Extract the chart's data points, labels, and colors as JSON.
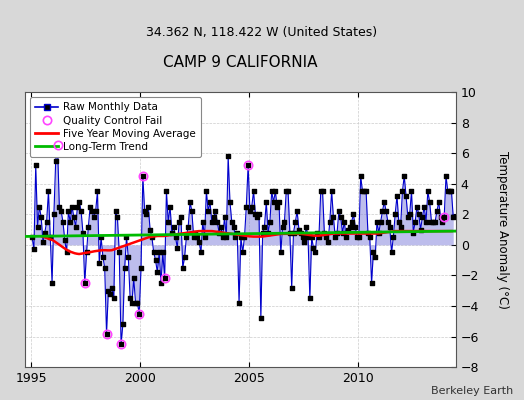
{
  "title": "CAMP 9 CALIFORNIA",
  "subtitle": "34.362 N, 118.422 W (United States)",
  "ylabel": "Temperature Anomaly (°C)",
  "credit": "Berkeley Earth",
  "ylim": [
    -8,
    10
  ],
  "xlim": [
    1994.7,
    2014.5
  ],
  "yticks": [
    -8,
    -6,
    -4,
    -2,
    0,
    2,
    4,
    6,
    8,
    10
  ],
  "xticks": [
    1995,
    2000,
    2005,
    2010
  ],
  "fig_bg_color": "#d8d8d8",
  "plot_bg_color": "#ffffff",
  "raw_line_color": "#0000cc",
  "raw_fill_color": "#8888dd",
  "dot_color": "#000000",
  "qc_color": "#ff44ff",
  "moving_avg_color": "#ff0000",
  "trend_color": "#00bb00",
  "raw_monthly": [
    1995.042,
    0.5,
    1995.125,
    -0.3,
    1995.208,
    5.2,
    1995.292,
    1.2,
    1995.375,
    2.5,
    1995.458,
    1.8,
    1995.542,
    0.2,
    1995.625,
    0.8,
    1995.708,
    1.5,
    1995.792,
    3.5,
    1995.875,
    0.5,
    1995.958,
    -2.5,
    1996.042,
    2.0,
    1996.125,
    5.5,
    1996.208,
    6.5,
    1996.292,
    2.5,
    1996.375,
    2.2,
    1996.458,
    1.5,
    1996.542,
    0.3,
    1996.625,
    -0.5,
    1996.708,
    2.2,
    1996.792,
    1.5,
    1996.875,
    2.5,
    1996.958,
    1.8,
    1997.042,
    1.2,
    1997.125,
    2.5,
    1997.208,
    2.8,
    1997.292,
    2.2,
    1997.375,
    0.8,
    1997.458,
    -2.5,
    1997.542,
    -0.5,
    1997.625,
    1.2,
    1997.708,
    2.5,
    1997.792,
    2.2,
    1997.875,
    1.8,
    1997.958,
    2.2,
    1998.042,
    3.5,
    1998.125,
    -1.2,
    1998.208,
    0.5,
    1998.292,
    -0.8,
    1998.375,
    -1.5,
    1998.458,
    -5.8,
    1998.542,
    -3.0,
    1998.625,
    -3.2,
    1998.708,
    -2.8,
    1998.792,
    -3.5,
    1998.875,
    2.2,
    1998.958,
    1.8,
    1999.042,
    -0.5,
    1999.125,
    -6.5,
    1999.208,
    -5.2,
    1999.292,
    -1.5,
    1999.375,
    0.5,
    1999.458,
    -0.8,
    1999.542,
    -3.5,
    1999.625,
    -3.8,
    1999.708,
    -2.2,
    1999.792,
    -3.8,
    1999.875,
    -3.8,
    1999.958,
    -4.5,
    2000.042,
    -1.5,
    2000.125,
    4.5,
    2000.208,
    2.2,
    2000.292,
    2.0,
    2000.375,
    2.5,
    2000.458,
    1.0,
    2000.542,
    0.5,
    2000.625,
    -0.5,
    2000.708,
    -1.0,
    2000.792,
    -1.8,
    2000.875,
    -0.5,
    2000.958,
    -2.5,
    2001.042,
    -0.5,
    2001.125,
    -2.2,
    2001.208,
    3.5,
    2001.292,
    1.5,
    2001.375,
    2.5,
    2001.458,
    0.8,
    2001.542,
    1.2,
    2001.625,
    0.5,
    2001.708,
    -0.2,
    2001.792,
    1.5,
    2001.875,
    1.8,
    2001.958,
    -1.5,
    2002.042,
    -0.8,
    2002.125,
    0.5,
    2002.208,
    1.2,
    2002.292,
    2.8,
    2002.375,
    2.2,
    2002.458,
    0.5,
    2002.542,
    0.8,
    2002.625,
    0.5,
    2002.708,
    0.2,
    2002.792,
    -0.5,
    2002.875,
    1.5,
    2002.958,
    0.5,
    2003.042,
    3.5,
    2003.125,
    2.2,
    2003.208,
    2.8,
    2003.292,
    1.5,
    2003.375,
    1.8,
    2003.458,
    2.2,
    2003.542,
    1.5,
    2003.625,
    0.8,
    2003.708,
    1.2,
    2003.792,
    0.5,
    2003.875,
    1.8,
    2003.958,
    0.5,
    2004.042,
    5.8,
    2004.125,
    2.8,
    2004.208,
    1.5,
    2004.292,
    1.2,
    2004.375,
    0.5,
    2004.458,
    0.8,
    2004.542,
    -3.8,
    2004.625,
    0.5,
    2004.708,
    -0.5,
    2004.792,
    0.5,
    2004.875,
    2.5,
    2004.958,
    5.2,
    2005.042,
    2.2,
    2005.125,
    2.5,
    2005.208,
    3.5,
    2005.292,
    2.0,
    2005.375,
    1.8,
    2005.458,
    2.0,
    2005.542,
    -4.8,
    2005.625,
    0.8,
    2005.708,
    1.2,
    2005.792,
    2.8,
    2005.875,
    0.8,
    2005.958,
    1.5,
    2006.042,
    3.5,
    2006.125,
    2.8,
    2006.208,
    3.5,
    2006.292,
    2.5,
    2006.375,
    2.8,
    2006.458,
    -0.5,
    2006.542,
    1.2,
    2006.625,
    1.5,
    2006.708,
    3.5,
    2006.792,
    3.5,
    2006.875,
    0.8,
    2006.958,
    -2.8,
    2007.042,
    0.8,
    2007.125,
    1.5,
    2007.208,
    2.2,
    2007.292,
    1.0,
    2007.375,
    0.8,
    2007.458,
    0.5,
    2007.542,
    0.2,
    2007.625,
    1.2,
    2007.708,
    0.5,
    2007.792,
    -3.5,
    2007.875,
    0.5,
    2007.958,
    -0.2,
    2008.042,
    -0.5,
    2008.125,
    0.8,
    2008.208,
    0.5,
    2008.292,
    3.5,
    2008.375,
    3.5,
    2008.458,
    0.8,
    2008.542,
    0.5,
    2008.625,
    0.2,
    2008.708,
    1.5,
    2008.792,
    3.5,
    2008.875,
    1.8,
    2008.958,
    0.5,
    2009.042,
    0.8,
    2009.125,
    2.2,
    2009.208,
    1.8,
    2009.292,
    0.8,
    2009.375,
    1.5,
    2009.458,
    0.5,
    2009.542,
    1.0,
    2009.625,
    1.2,
    2009.708,
    1.5,
    2009.792,
    2.0,
    2009.875,
    1.2,
    2009.958,
    0.5,
    2010.042,
    0.5,
    2010.125,
    4.5,
    2010.208,
    3.5,
    2010.292,
    3.5,
    2010.375,
    3.5,
    2010.458,
    0.8,
    2010.542,
    0.5,
    2010.625,
    -2.5,
    2010.708,
    -0.5,
    2010.792,
    -0.8,
    2010.875,
    1.5,
    2010.958,
    0.8,
    2011.042,
    1.5,
    2011.125,
    2.2,
    2011.208,
    2.8,
    2011.292,
    2.2,
    2011.375,
    1.5,
    2011.458,
    1.2,
    2011.542,
    -0.5,
    2011.625,
    0.5,
    2011.708,
    2.0,
    2011.792,
    3.2,
    2011.875,
    1.5,
    2011.958,
    1.2,
    2012.042,
    3.5,
    2012.125,
    4.5,
    2012.208,
    3.2,
    2012.292,
    1.8,
    2012.375,
    2.0,
    2012.458,
    3.5,
    2012.542,
    0.8,
    2012.625,
    1.5,
    2012.708,
    2.5,
    2012.792,
    2.0,
    2012.875,
    1.0,
    2012.958,
    1.8,
    2013.042,
    2.5,
    2013.125,
    1.5,
    2013.208,
    3.5,
    2013.292,
    2.8,
    2013.375,
    1.5,
    2013.458,
    1.5,
    2013.542,
    1.5,
    2013.625,
    2.2,
    2013.708,
    2.8,
    2013.792,
    1.8,
    2013.875,
    1.5,
    2013.958,
    1.8,
    2014.042,
    4.5,
    2014.125,
    3.5,
    2014.208,
    3.5,
    2014.292,
    3.5,
    2014.375,
    1.8
  ],
  "qc_fail_points": [
    [
      1996.208,
      6.5
    ],
    [
      1997.458,
      -2.5
    ],
    [
      1998.458,
      -5.8
    ],
    [
      1999.125,
      -6.5
    ],
    [
      1999.958,
      -4.5
    ],
    [
      2000.125,
      4.5
    ],
    [
      2001.125,
      -2.2
    ],
    [
      2004.958,
      5.2
    ],
    [
      2013.958,
      1.8
    ]
  ],
  "moving_avg_x": [
    1995.5,
    1995.6,
    1995.7,
    1995.8,
    1995.9,
    1996.0,
    1996.1,
    1996.2,
    1996.3,
    1996.4,
    1996.5,
    1996.6,
    1996.7,
    1996.8,
    1996.9,
    1997.0,
    1997.1,
    1997.2,
    1997.3,
    1997.4,
    1997.5,
    1997.6,
    1997.7,
    1997.8,
    1997.9,
    1998.0,
    1998.1,
    1998.2,
    1998.3,
    1998.4,
    1998.5,
    1998.6,
    1998.7,
    1998.8,
    1998.9,
    1999.0,
    1999.1,
    1999.2,
    1999.3,
    1999.4,
    1999.5,
    1999.6,
    1999.7,
    1999.8,
    1999.9,
    2000.0,
    2000.1,
    2000.2,
    2000.3,
    2000.4,
    2000.5,
    2000.6,
    2000.7,
    2000.8,
    2000.9,
    2001.0,
    2001.1,
    2001.2,
    2001.3,
    2001.4,
    2001.5,
    2001.6,
    2001.7,
    2001.8,
    2001.9,
    2002.0,
    2002.1,
    2002.2,
    2002.3,
    2002.4,
    2002.5,
    2002.6,
    2002.7,
    2002.8,
    2002.9,
    2003.0,
    2003.1,
    2003.2,
    2003.3,
    2003.4,
    2003.5,
    2003.6,
    2003.7,
    2003.8,
    2003.9,
    2004.0,
    2004.1,
    2004.2,
    2004.3,
    2004.4,
    2004.5,
    2004.6,
    2004.7,
    2004.8,
    2004.9,
    2005.0,
    2005.1,
    2005.2,
    2005.3,
    2005.4,
    2005.5,
    2005.6,
    2005.7,
    2005.8,
    2005.9,
    2006.0,
    2006.1,
    2006.2,
    2006.3,
    2006.4,
    2006.5,
    2006.6,
    2006.7,
    2006.8,
    2006.9,
    2007.0,
    2007.1,
    2007.2,
    2007.3,
    2007.4,
    2007.5,
    2007.6,
    2007.7,
    2007.8,
    2007.9,
    2008.0,
    2008.1,
    2008.2,
    2008.3,
    2008.4,
    2008.5,
    2008.6,
    2008.7,
    2008.8,
    2008.9,
    2009.0,
    2009.1,
    2009.2,
    2009.3,
    2009.4,
    2009.5,
    2009.6,
    2009.7,
    2009.8,
    2009.9,
    2010.0,
    2010.1,
    2010.2,
    2010.3,
    2010.4,
    2010.5,
    2010.6,
    2010.7,
    2010.8,
    2010.9,
    2011.0,
    2011.1,
    2011.2,
    2011.3,
    2011.4,
    2011.5,
    2011.6,
    2011.7,
    2011.8,
    2011.9,
    2012.0,
    2012.1,
    2012.2,
    2012.3,
    2012.4,
    2012.5,
    2012.6,
    2012.7,
    2012.8,
    2012.9,
    2013.0,
    2013.1,
    2013.2,
    2013.3,
    2013.4,
    2013.5,
    2013.6,
    2013.7,
    2013.8,
    2013.9,
    2014.0,
    2014.1,
    2014.2,
    2014.3
  ],
  "moving_avg_y": [
    0.55,
    0.5,
    0.45,
    0.4,
    0.35,
    0.3,
    0.2,
    0.1,
    0.0,
    -0.1,
    -0.2,
    -0.3,
    -0.38,
    -0.45,
    -0.5,
    -0.55,
    -0.58,
    -0.6,
    -0.58,
    -0.55,
    -0.52,
    -0.5,
    -0.48,
    -0.45,
    -0.42,
    -0.4,
    -0.38,
    -0.36,
    -0.35,
    -0.35,
    -0.36,
    -0.36,
    -0.35,
    -0.3,
    -0.25,
    -0.2,
    -0.15,
    -0.1,
    -0.05,
    0.0,
    0.05,
    0.1,
    0.15,
    0.2,
    0.25,
    0.3,
    0.35,
    0.4,
    0.45,
    0.5,
    0.52,
    0.54,
    0.56,
    0.58,
    0.58,
    0.58,
    0.58,
    0.6,
    0.62,
    0.64,
    0.66,
    0.68,
    0.7,
    0.72,
    0.74,
    0.76,
    0.78,
    0.8,
    0.82,
    0.84,
    0.86,
    0.88,
    0.9,
    0.9,
    0.9,
    0.9,
    0.9,
    0.9,
    0.9,
    0.88,
    0.86,
    0.84,
    0.82,
    0.8,
    0.78,
    0.76,
    0.74,
    0.72,
    0.7,
    0.68,
    0.66,
    0.64,
    0.62,
    0.6,
    0.58,
    0.56,
    0.55,
    0.54,
    0.54,
    0.54,
    0.54,
    0.54,
    0.56,
    0.58,
    0.6,
    0.62,
    0.64,
    0.66,
    0.68,
    0.7,
    0.72,
    0.72,
    0.72,
    0.72,
    0.72,
    0.72,
    0.72,
    0.72,
    0.72,
    0.72,
    0.7,
    0.68,
    0.66,
    0.64,
    0.62,
    0.6,
    0.6,
    0.6,
    0.62,
    0.64,
    0.66,
    0.68,
    0.7,
    0.72,
    0.74,
    0.74,
    0.74,
    0.74,
    0.74,
    0.74,
    0.74,
    0.74,
    0.74,
    0.74,
    0.74,
    0.74,
    0.74,
    0.74,
    0.74,
    0.74,
    0.74,
    0.74,
    0.74,
    0.74,
    0.74,
    0.76,
    0.78,
    0.8,
    0.82,
    0.84,
    0.86,
    0.88,
    0.9,
    0.9,
    0.9,
    0.9,
    0.9,
    0.9,
    0.9,
    0.9,
    0.9,
    0.9,
    0.9,
    0.9,
    0.9,
    0.9,
    0.9,
    0.9,
    0.9,
    0.9,
    0.9,
    0.9,
    0.9,
    0.9,
    0.9,
    0.9,
    0.9,
    0.9,
    0.9
  ],
  "trend_x": [
    1994.7,
    2014.5
  ],
  "trend_y": [
    0.55,
    0.9
  ]
}
